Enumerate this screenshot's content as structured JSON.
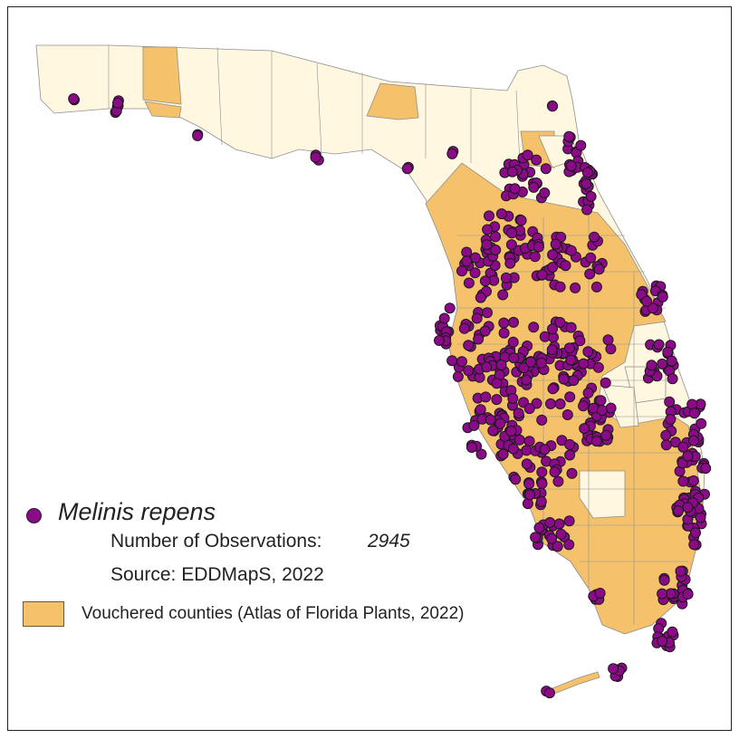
{
  "legend": {
    "species": "Melinis repens",
    "observations_label": "Number of Observations:",
    "observations_value": "2945",
    "source": "Source: EDDMapS, 2022",
    "vouchered_label": "Vouchered counties (Atlas of Florida Plants, 2022)"
  },
  "colors": {
    "vouchered": "#f5c26b",
    "not_vouchered": "#fff7df",
    "observation_dot": "#8b0a87",
    "county_border": "#8f8f8f"
  }
}
